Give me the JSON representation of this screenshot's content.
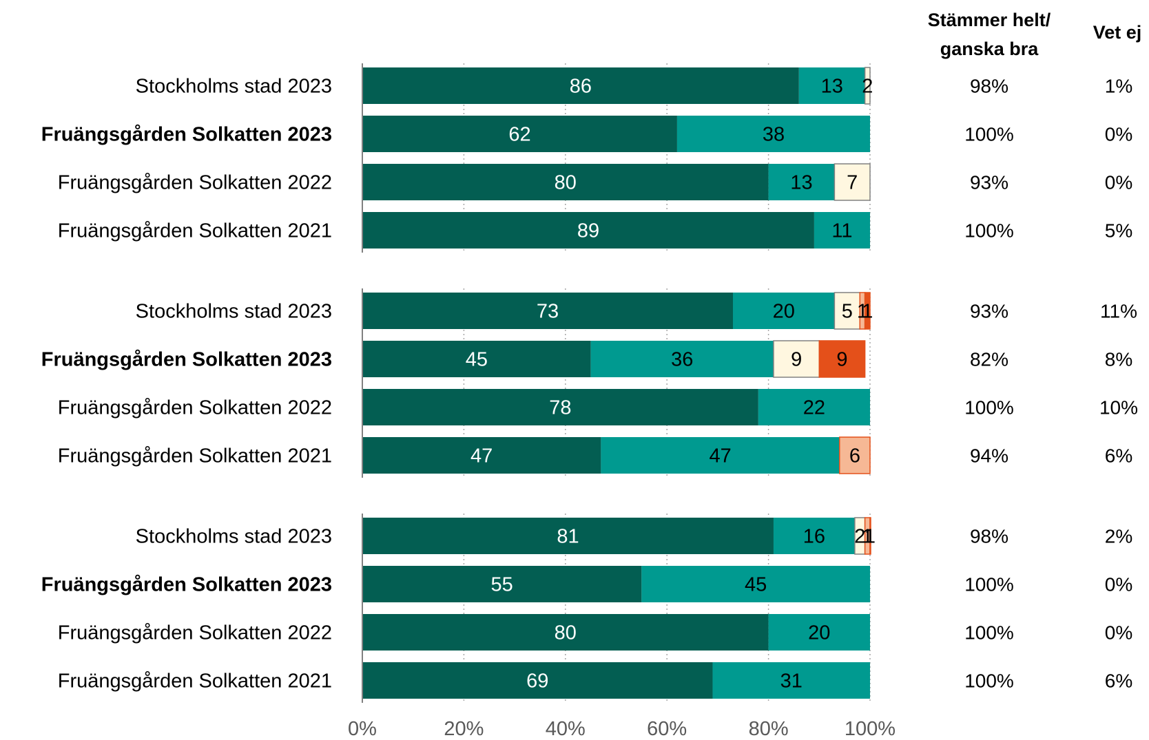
{
  "colors": {
    "stammer_helt": "#035E52",
    "stammer_ganska": "#009A90",
    "varken": "#FFF7E0",
    "ganska_daligt": "#F6B895",
    "helt_daligt": "#E4501A",
    "axis": "#808080",
    "grid": "#A6A6A6"
  },
  "headers": {
    "good_line1": "Stämmer helt/",
    "good_line2": "ganska bra",
    "vet_ej": "Vet ej"
  },
  "chart_data": {
    "type": "bar",
    "orientation": "horizontal",
    "stacked": true,
    "xlim": [
      0,
      100
    ],
    "x_ticks": [
      "0%",
      "20%",
      "40%",
      "60%",
      "80%",
      "100%"
    ],
    "grid": true,
    "groups": [
      {
        "rows": [
          {
            "label": "Stockholms stad 2023",
            "bold": false,
            "segments": [
              86,
              13,
              2,
              0,
              0
            ],
            "good": "98%",
            "vet_ej": "1%"
          },
          {
            "label": "Fruängsgården Solkatten 2023",
            "bold": true,
            "segments": [
              62,
              38,
              0,
              0,
              0
            ],
            "good": "100%",
            "vet_ej": "0%"
          },
          {
            "label": "Fruängsgården Solkatten 2022",
            "bold": false,
            "segments": [
              80,
              13,
              7,
              0,
              0
            ],
            "good": "93%",
            "vet_ej": "0%"
          },
          {
            "label": "Fruängsgården Solkatten 2021",
            "bold": false,
            "segments": [
              89,
              11,
              0,
              0,
              0
            ],
            "good": "100%",
            "vet_ej": "5%"
          }
        ]
      },
      {
        "rows": [
          {
            "label": "Stockholms stad 2023",
            "bold": false,
            "segments": [
              73,
              20,
              5,
              1,
              1
            ],
            "good": "93%",
            "vet_ej": "11%"
          },
          {
            "label": "Fruängsgården Solkatten 2023",
            "bold": true,
            "segments": [
              45,
              36,
              9,
              0,
              9
            ],
            "good": "82%",
            "vet_ej": "8%"
          },
          {
            "label": "Fruängsgården Solkatten 2022",
            "bold": false,
            "segments": [
              78,
              22,
              0,
              0,
              0
            ],
            "good": "100%",
            "vet_ej": "10%"
          },
          {
            "label": "Fruängsgården Solkatten 2021",
            "bold": false,
            "segments": [
              47,
              47,
              0,
              6,
              0
            ],
            "good": "94%",
            "vet_ej": "6%"
          }
        ]
      },
      {
        "rows": [
          {
            "label": "Stockholms stad 2023",
            "bold": false,
            "segments": [
              81,
              16,
              2,
              1,
              1
            ],
            "good": "98%",
            "vet_ej": "2%"
          },
          {
            "label": "Fruängsgården Solkatten 2023",
            "bold": true,
            "segments": [
              55,
              45,
              0,
              0,
              0
            ],
            "good": "100%",
            "vet_ej": "0%"
          },
          {
            "label": "Fruängsgården Solkatten 2022",
            "bold": false,
            "segments": [
              80,
              20,
              0,
              0,
              0
            ],
            "good": "100%",
            "vet_ej": "0%"
          },
          {
            "label": "Fruängsgården Solkatten 2021",
            "bold": false,
            "segments": [
              69,
              31,
              0,
              0,
              0
            ],
            "good": "100%",
            "vet_ej": "6%"
          }
        ]
      }
    ]
  }
}
